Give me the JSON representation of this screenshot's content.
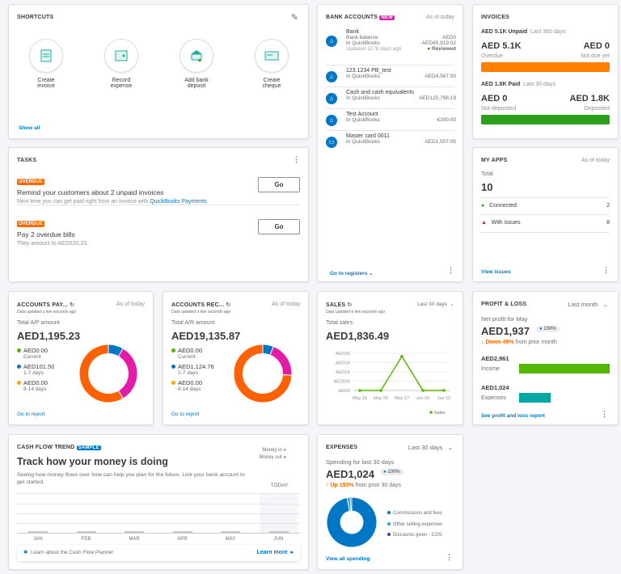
{
  "shortcuts": {
    "title": "SHORTCUTS",
    "items": [
      {
        "label1": "Create",
        "label2": "invoice",
        "icon": "invoice-icon"
      },
      {
        "label1": "Record",
        "label2": "expense",
        "icon": "expense-icon"
      },
      {
        "label1": "Add bank",
        "label2": "deposit",
        "icon": "bank-deposit-icon"
      },
      {
        "label1": "Create",
        "label2": "cheque",
        "icon": "cheque-icon"
      }
    ],
    "show_all": "Show all"
  },
  "tasks": {
    "title": "TASKS",
    "items": [
      {
        "badge": "OVERDUE",
        "title": "Remind your customers about 2 unpaid invoices",
        "desc": "Next time you can get paid right from an invoice with ",
        "link": "QuickBooks Payments",
        "button": "Go"
      },
      {
        "badge": "OVERDUE",
        "title": "Pay 2 overdue bills",
        "desc": "They amount to AED520.23.",
        "button": "Go"
      }
    ]
  },
  "bank": {
    "title": "BANK ACCOUNTS",
    "badge": "NEW",
    "as_of": "As of today",
    "accounts": [
      {
        "name": "Bank",
        "l1": "Bank balance",
        "v1": "AED0",
        "l2": "In QuickBooks",
        "v2": "-AED65,919.02",
        "l3": "Updated 1176 days ago",
        "v3": "Reviewed"
      },
      {
        "name": "123.1234 PB_test",
        "l2": "In QuickBooks",
        "v2": "AED4,567.00"
      },
      {
        "name": "Cash and cash equivalents",
        "l2": "In QuickBooks",
        "v2": "AED125,798.19"
      },
      {
        "name": "Test Account",
        "l2": "In QuickBooks",
        "v2": "€200.00"
      },
      {
        "name": "Master card 0011",
        "l2": "In QuickBooks",
        "v2": "AED1,507.05"
      }
    ],
    "footer": "Go to registers"
  },
  "invoices": {
    "title": "INVOICES",
    "unpaid": "AED 5.1K Unpaid",
    "unpaid_period": "Last 365 days",
    "overdue_amt": "AED 5.1K",
    "overdue_lbl": "Overdue",
    "notdue_amt": "AED 0",
    "notdue_lbl": "Not due yet",
    "paid": "AED 1.8K Paid",
    "paid_period": "Last 30 days",
    "notdep_amt": "AED 0",
    "notdep_lbl": "Not deposited",
    "dep_amt": "AED 1.8K",
    "dep_lbl": "Deposited",
    "colors": {
      "overdue": "#ff8000",
      "deposited": "#2ca01c"
    }
  },
  "apps": {
    "title": "MY APPS",
    "as_of": "As of today",
    "total_lbl": "Total",
    "total": "10",
    "connected_lbl": "Connected",
    "connected": "2",
    "issues_lbl": "With issues",
    "issues": "8",
    "footer": "View issues"
  },
  "ap": {
    "title": "ACCOUNTS PAY...",
    "as_of": "As of today",
    "updated": "Data updated a few seconds ago",
    "total_lbl": "Total A/P amount",
    "total": "AED1,195.23",
    "legend": [
      {
        "amt": "AED0.00",
        "lbl": "Current",
        "color": "#53b700"
      },
      {
        "amt": "AED101.50",
        "lbl": "1-7 days",
        "color": "#0077c5"
      },
      {
        "amt": "AED0.00",
        "lbl": "8-14 days",
        "color": "#ffa800"
      }
    ],
    "donut": [
      {
        "color": "#0077c5",
        "share": 0.085
      },
      {
        "color": "#e31ba8",
        "share": 0.33
      },
      {
        "color": "#ff6000",
        "share": 0.585
      }
    ],
    "footer": "Go to report"
  },
  "ar": {
    "title": "ACCOUNTS REC...",
    "as_of": "As of today",
    "updated": "Data updated a few seconds ago",
    "total_lbl": "Total A/R amount",
    "total": "AED19,135.87",
    "legend": [
      {
        "amt": "AED0.00",
        "lbl": "Current",
        "color": "#53b700"
      },
      {
        "amt": "AED1,124.76",
        "lbl": "1-7 days",
        "color": "#0077c5"
      },
      {
        "amt": "AED0.00",
        "lbl": "8-14 days",
        "color": "#ffa800"
      }
    ],
    "donut": [
      {
        "color": "#0077c5",
        "share": 0.06
      },
      {
        "color": "#e31ba8",
        "share": 0.2
      },
      {
        "color": "#ff6000",
        "share": 0.74
      }
    ],
    "footer": "Go to report"
  },
  "sales": {
    "title": "SALES",
    "period": "Last 30 days",
    "updated": "Data updated a few seconds ago",
    "total_lbl": "Total sales",
    "total": "AED1,836.49"
  },
  "chart_data": {
    "type": "line",
    "categories": [
      "May 15",
      "May 20",
      "May 27",
      "Jun 03",
      "Jun 10"
    ],
    "series": [
      {
        "name": "Sales",
        "values": [
          0,
          0,
          1836.49,
          0,
          0
        ],
        "color": "#53b700"
      }
    ],
    "yticks": [
      "AED0",
      "AED500",
      "AED1K",
      "AED1K",
      "AED2K"
    ],
    "ylim": [
      0,
      2000
    ],
    "grid": true,
    "legend": "bottom-right"
  },
  "pl": {
    "title": "PROFIT & LOSS",
    "period": "Last month",
    "net_lbl": "Net profit for May",
    "net": "AED1,937",
    "pct": "100%",
    "change": "Down 49%",
    "change_rest": " from prior month",
    "income_amt": "AED2,961",
    "income_lbl": "Income",
    "income": 2961,
    "exp_amt": "AED1,024",
    "exp_lbl": "Expenses",
    "expenses": 1024,
    "footer": "See profit and loss report"
  },
  "cashflow": {
    "title": "CASH FLOW TREND",
    "badge": "SAMPLE",
    "headline": "Track how your money is doing",
    "desc": "Seeing how money flows over time can help you plan for the future. Link your bank account to get started.",
    "money_in": "Money in",
    "money_out": "Money out",
    "today": "TODAY",
    "months": [
      "JAN",
      "FEB",
      "MAR",
      "APR",
      "MAY",
      "JUN"
    ],
    "learn": "Learn about the Cash Flow Planner",
    "learn_more": "Learn more"
  },
  "expenses": {
    "title": "EXPENSES",
    "period": "Last 30 days",
    "spend_lbl": "Spending for last 30 days",
    "total": "AED1,024",
    "pct": "100%",
    "change": "Up 193%",
    "change_rest": " from prior 30 days",
    "legend": [
      {
        "lbl": "Commissions and fees",
        "color": "#0077c5",
        "share": 0.97
      },
      {
        "lbl": "Other selling expenses",
        "color": "#21aba5",
        "share": 0.02
      },
      {
        "lbl": "Discounts given - COS",
        "color": "#5e2ca5",
        "share": 0.01
      }
    ],
    "footer": "View all spending"
  }
}
